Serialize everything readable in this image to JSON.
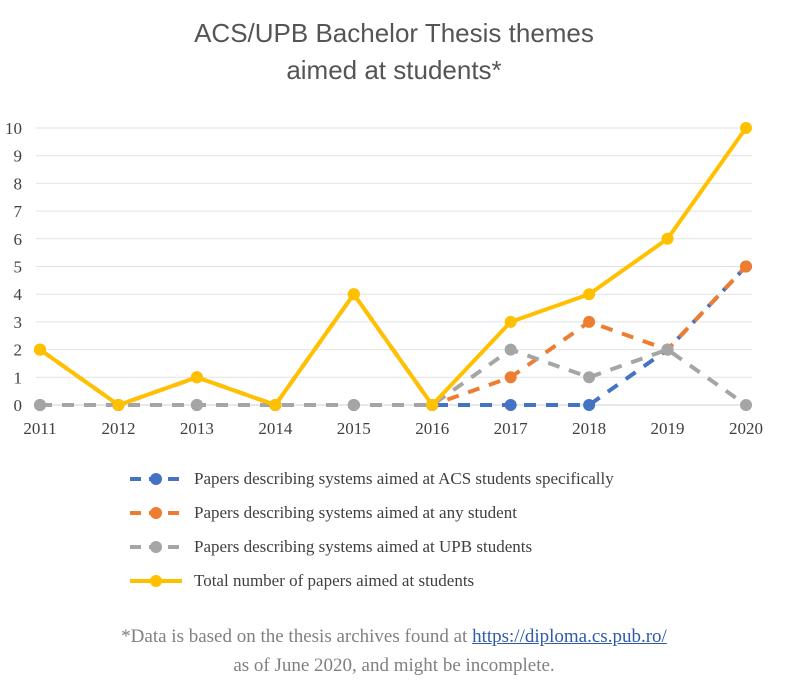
{
  "chart_data": {
    "type": "line",
    "title": "ACS/UPB Bachelor Thesis themes",
    "subtitle": "aimed at students*",
    "x": [
      "2011",
      "2012",
      "2013",
      "2014",
      "2015",
      "2016",
      "2017",
      "2018",
      "2019",
      "2020"
    ],
    "y_ticks": [
      "0",
      "1",
      "2",
      "3",
      "4",
      "5",
      "6",
      "7",
      "8",
      "9",
      "10"
    ],
    "ylim": [
      0,
      10
    ],
    "grid": true,
    "legend_position": "bottom",
    "series": [
      {
        "name": "Papers describing systems aimed at ACS students specifically",
        "color": "#4472c4",
        "dashed": true,
        "values": [
          0,
          0,
          0,
          0,
          0,
          0,
          0,
          0,
          2,
          5
        ]
      },
      {
        "name": "Papers describing systems aimed at any student",
        "color": "#ed7d31",
        "dashed": true,
        "values": [
          2,
          0,
          1,
          0,
          4,
          0,
          1,
          3,
          2,
          5
        ]
      },
      {
        "name": "Papers describing systems aimed at UPB students",
        "color": "#a5a5a5",
        "dashed": true,
        "values": [
          0,
          0,
          0,
          0,
          0,
          0,
          2,
          1,
          2,
          0
        ]
      },
      {
        "name": "Total number of papers aimed at students",
        "color": "#ffc000",
        "dashed": false,
        "values": [
          2,
          0,
          1,
          0,
          4,
          0,
          3,
          4,
          6,
          10
        ]
      }
    ]
  },
  "footnote": {
    "prefix": "*Data is based on the thesis archives found at ",
    "link": "https://diploma.cs.pub.ro/",
    "line2": "as of June 2020, and might be incomplete."
  }
}
